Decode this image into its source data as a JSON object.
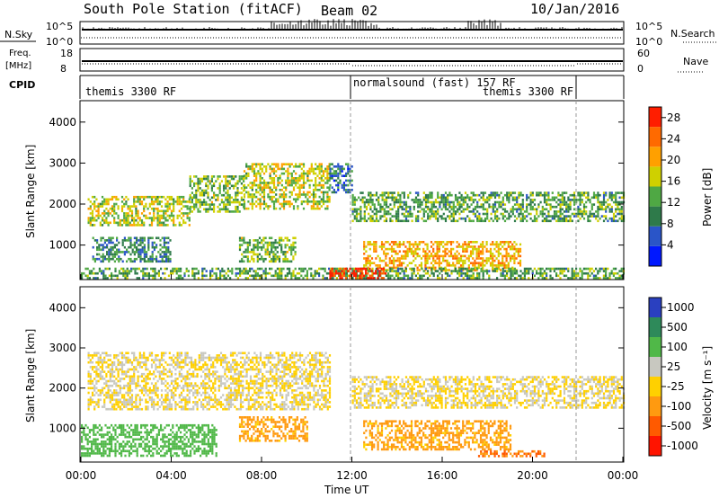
{
  "header": {
    "title": "South Pole Station (fitACF)",
    "beam": "Beam 02",
    "date": "10/Jan/2016"
  },
  "strip_labels": {
    "nsky": "N.Sky",
    "nsearch": "N.Search",
    "freq_line1": "Freq.",
    "freq_line2": "[MHz]",
    "nave": "Nave",
    "cpid": "CPID"
  },
  "noise_axis": {
    "left_ticks": [
      "10^5",
      "10^0"
    ],
    "right_ticks": [
      "10^5",
      "10^0"
    ]
  },
  "freq_axis": {
    "left_ticks": [
      "18",
      "8"
    ],
    "right_ticks": [
      "60",
      "0"
    ]
  },
  "cpid_segments": [
    {
      "label": "themis 3300 RF",
      "start_hour": 0,
      "end_hour": 12
    },
    {
      "label": "normalsound (fast) 157 RF",
      "start_hour": 12,
      "end_hour": 22
    },
    {
      "label": "themis 3300 RF",
      "start_hour": 17,
      "end_hour": 22
    }
  ],
  "chart_data": [
    {
      "type": "heatmap",
      "name": "power",
      "xlabel": "",
      "ylabel": "Slant Range [km]",
      "xlim": [
        0,
        24
      ],
      "ylim": [
        180,
        4500
      ],
      "y_ticks": [
        "1000",
        "2000",
        "3000",
        "4000"
      ],
      "colorbar": {
        "label": "Power [dB]",
        "ticks": [
          "4",
          "8",
          "12",
          "16",
          "20",
          "24",
          "28"
        ],
        "range": [
          0,
          30
        ],
        "colors": [
          "#0018ff",
          "#2a55c8",
          "#2e7a4a",
          "#4fa844",
          "#cfd000",
          "#ffa000",
          "#ff6a00",
          "#ff1e00"
        ]
      },
      "echo_bands": [
        {
          "x_start": 0.3,
          "x_end": 4.8,
          "range_low": 1500,
          "range_high": 2200,
          "level": 16
        },
        {
          "x_start": 4.8,
          "x_end": 7.2,
          "range_low": 1800,
          "range_high": 2700,
          "level": 14
        },
        {
          "x_start": 7.2,
          "x_end": 11.0,
          "range_low": 1900,
          "range_high": 3000,
          "level": 16
        },
        {
          "x_start": 11.0,
          "x_end": 12.0,
          "range_low": 2300,
          "range_high": 3000,
          "level": 8
        },
        {
          "x_start": 12.0,
          "x_end": 24.0,
          "range_low": 1600,
          "range_high": 2300,
          "level": 12
        },
        {
          "x_start": 0.5,
          "x_end": 4.0,
          "range_low": 600,
          "range_high": 1200,
          "level": 10
        },
        {
          "x_start": 7.0,
          "x_end": 9.5,
          "range_low": 600,
          "range_high": 1200,
          "level": 14
        },
        {
          "x_start": 12.5,
          "x_end": 19.5,
          "range_low": 400,
          "range_high": 1100,
          "level": 20
        },
        {
          "x_start": 0.0,
          "x_end": 24.0,
          "range_low": 200,
          "range_high": 450,
          "level": 12
        },
        {
          "x_start": 11.0,
          "x_end": 13.5,
          "range_low": 200,
          "range_high": 450,
          "level": 28
        }
      ]
    },
    {
      "type": "heatmap",
      "name": "velocity",
      "xlabel": "Time UT",
      "ylabel": "Slant Range [km]",
      "xlim": [
        0,
        24
      ],
      "ylim": [
        180,
        4500
      ],
      "x_ticks": [
        "00:00",
        "04:00",
        "08:00",
        "12:00",
        "16:00",
        "20:00",
        "00:00"
      ],
      "y_ticks": [
        "1000",
        "2000",
        "3000",
        "4000"
      ],
      "colorbar": {
        "label": "Velocity [m s⁻¹]",
        "ticks": [
          "1000",
          "500",
          "100",
          "25",
          "-25",
          "-100",
          "-500",
          "-1000"
        ],
        "colors": [
          "#2a40c0",
          "#2e8a5a",
          "#50b848",
          "#c8c8c0",
          "#ffd000",
          "#ff9a10",
          "#ff5a00",
          "#ff1400"
        ]
      },
      "echo_bands": [
        {
          "x_start": 0.3,
          "x_end": 11.0,
          "range_low": 1500,
          "range_high": 2900,
          "level": 0
        },
        {
          "x_start": 12.0,
          "x_end": 24.0,
          "range_low": 1500,
          "range_high": 2300,
          "level": 0
        },
        {
          "x_start": 7.0,
          "x_end": 10.0,
          "range_low": 700,
          "range_high": 1300,
          "level": -100
        },
        {
          "x_start": 12.5,
          "x_end": 19.0,
          "range_low": 500,
          "range_high": 1200,
          "level": -100
        },
        {
          "x_start": 0.0,
          "x_end": 6.0,
          "range_low": 300,
          "range_high": 1100,
          "level": 150
        },
        {
          "x_start": 17.5,
          "x_end": 20.5,
          "range_low": 300,
          "range_high": 450,
          "level": -300
        }
      ]
    }
  ]
}
